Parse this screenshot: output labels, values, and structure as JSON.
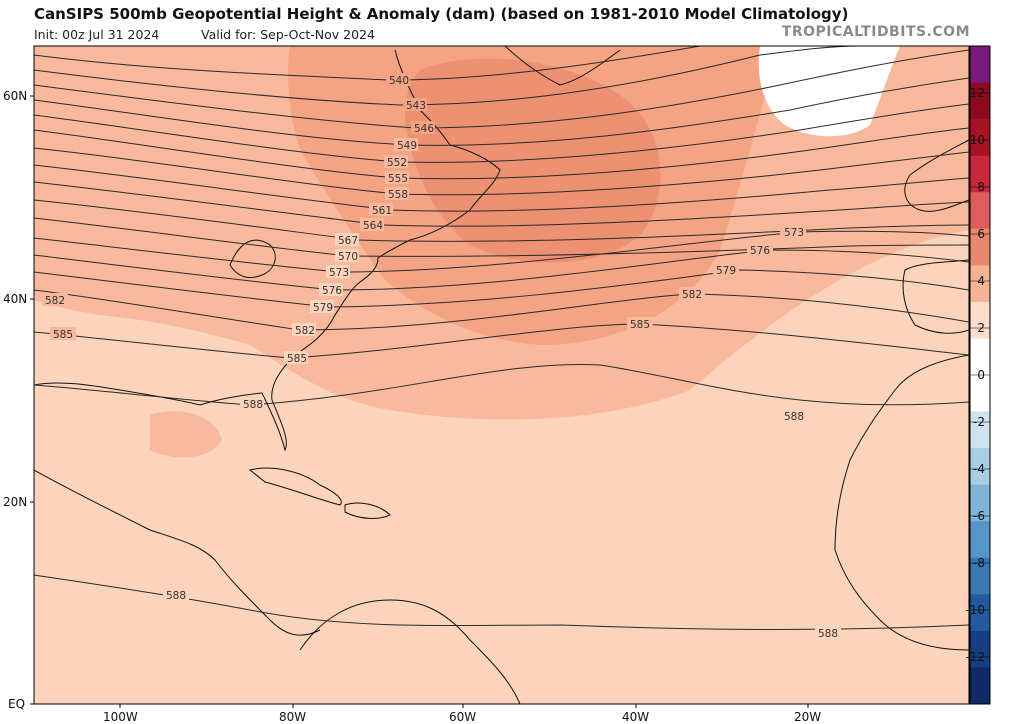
{
  "header": {
    "title": "CanSIPS 500mb Geopotential Height & Anomaly (dam) (based on 1981-2010 Model Climatology)",
    "init": "Init: 00z Jul 31 2024",
    "valid": "Valid for: Sep-Oct-Nov 2024",
    "credit": "TROPICALTIDBITS.COM"
  },
  "map": {
    "lat_labels": [
      "60N",
      "40N",
      "20N",
      "EQ"
    ],
    "lon_labels": [
      "100W",
      "80W",
      "60W",
      "40W",
      "20W"
    ],
    "contour_labels": [
      "540",
      "543",
      "546",
      "549",
      "552",
      "555",
      "558",
      "561",
      "564",
      "567",
      "570",
      "573",
      "576",
      "579",
      "582",
      "585",
      "588"
    ],
    "colors": {
      "anom_1": "#fcd3bb",
      "anom_2": "#f8b99c",
      "anom_3": "#f4a383",
      "anom_4": "#ee9072",
      "neutral": "#ffffff",
      "contour": "#2b2b2b",
      "coast": "#111111"
    }
  },
  "colorbar": {
    "labels": [
      "12",
      "10",
      "8",
      "6",
      "4",
      "2",
      "0",
      "-2",
      "-4",
      "-6",
      "-8",
      "-10",
      "-12"
    ],
    "colors": [
      "#7a1a7a",
      "#8b0a1e",
      "#a81225",
      "#c8283a",
      "#dd5c5c",
      "#e8896e",
      "#f4b394",
      "#fcdccb",
      "#ffffff",
      "#ffffff",
      "#cfe3ef",
      "#a9cde3",
      "#7fb4d8",
      "#5596c6",
      "#3a78b4",
      "#2359a0",
      "#173e85",
      "#0f2a66"
    ]
  }
}
